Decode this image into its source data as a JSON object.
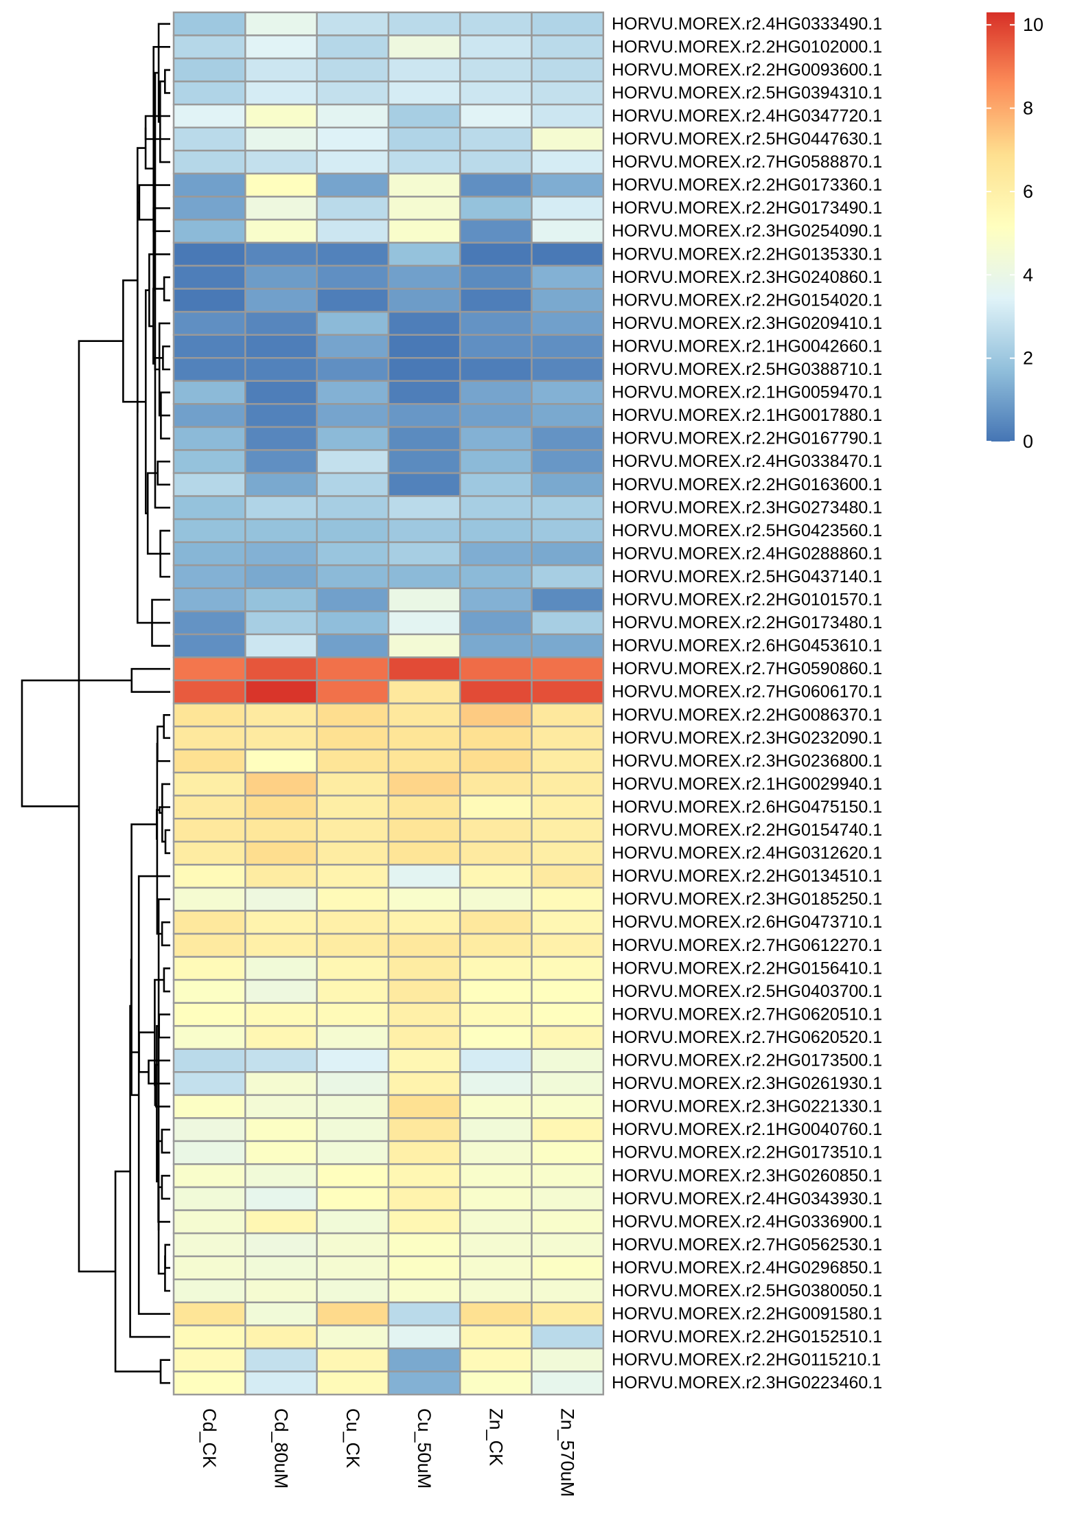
{
  "chart_data": {
    "type": "heatmap",
    "columns": [
      "Cd_CK",
      "Cd_80uM",
      "Cu_CK",
      "Cu_50uM",
      "Zn_CK",
      "Zn_570uM"
    ],
    "rows": [
      "HORVU.MOREX.r2.4HG0333490.1",
      "HORVU.MOREX.r2.2HG0102000.1",
      "HORVU.MOREX.r2.2HG0093600.1",
      "HORVU.MOREX.r2.5HG0394310.1",
      "HORVU.MOREX.r2.4HG0347720.1",
      "HORVU.MOREX.r2.5HG0447630.1",
      "HORVU.MOREX.r2.7HG0588870.1",
      "HORVU.MOREX.r2.2HG0173360.1",
      "HORVU.MOREX.r2.2HG0173490.1",
      "HORVU.MOREX.r2.3HG0254090.1",
      "HORVU.MOREX.r2.2HG0135330.1",
      "HORVU.MOREX.r2.3HG0240860.1",
      "HORVU.MOREX.r2.2HG0154020.1",
      "HORVU.MOREX.r2.3HG0209410.1",
      "HORVU.MOREX.r2.1HG0042660.1",
      "HORVU.MOREX.r2.5HG0388710.1",
      "HORVU.MOREX.r2.1HG0059470.1",
      "HORVU.MOREX.r2.1HG0017880.1",
      "HORVU.MOREX.r2.2HG0167790.1",
      "HORVU.MOREX.r2.4HG0338470.1",
      "HORVU.MOREX.r2.2HG0163600.1",
      "HORVU.MOREX.r2.3HG0273480.1",
      "HORVU.MOREX.r2.5HG0423560.1",
      "HORVU.MOREX.r2.4HG0288860.1",
      "HORVU.MOREX.r2.5HG0437140.1",
      "HORVU.MOREX.r2.2HG0101570.1",
      "HORVU.MOREX.r2.2HG0173480.1",
      "HORVU.MOREX.r2.6HG0453610.1",
      "HORVU.MOREX.r2.7HG0590860.1",
      "HORVU.MOREX.r2.7HG0606170.1",
      "HORVU.MOREX.r2.2HG0086370.1",
      "HORVU.MOREX.r2.3HG0232090.1",
      "HORVU.MOREX.r2.3HG0236800.1",
      "HORVU.MOREX.r2.1HG0029940.1",
      "HORVU.MOREX.r2.6HG0475150.1",
      "HORVU.MOREX.r2.2HG0154740.1",
      "HORVU.MOREX.r2.4HG0312620.1",
      "HORVU.MOREX.r2.2HG0134510.1",
      "HORVU.MOREX.r2.3HG0185250.1",
      "HORVU.MOREX.r2.6HG0473710.1",
      "HORVU.MOREX.r2.7HG0612270.1",
      "HORVU.MOREX.r2.2HG0156410.1",
      "HORVU.MOREX.r2.5HG0403700.1",
      "HORVU.MOREX.r2.7HG0620510.1",
      "HORVU.MOREX.r2.7HG0620520.1",
      "HORVU.MOREX.r2.2HG0173500.1",
      "HORVU.MOREX.r2.3HG0261930.1",
      "HORVU.MOREX.r2.3HG0221330.1",
      "HORVU.MOREX.r2.1HG0040760.1",
      "HORVU.MOREX.r2.2HG0173510.1",
      "HORVU.MOREX.r2.3HG0260850.1",
      "HORVU.MOREX.r2.4HG0343930.1",
      "HORVU.MOREX.r2.4HG0336900.1",
      "HORVU.MOREX.r2.7HG0562530.1",
      "HORVU.MOREX.r2.4HG0296850.1",
      "HORVU.MOREX.r2.5HG0380050.1",
      "HORVU.MOREX.r2.2HG0091580.1",
      "HORVU.MOREX.r2.2HG0152510.1",
      "HORVU.MOREX.r2.2HG0115210.1",
      "HORVU.MOREX.r2.3HG0223460.1"
    ],
    "values": [
      [
        2.0,
        3.8,
        2.8,
        2.6,
        2.6,
        2.4
      ],
      [
        2.5,
        3.5,
        2.5,
        4.2,
        3.0,
        2.6
      ],
      [
        2.2,
        3.0,
        2.6,
        3.0,
        2.8,
        2.6
      ],
      [
        2.4,
        3.2,
        2.8,
        3.2,
        3.0,
        2.8
      ],
      [
        3.5,
        4.8,
        3.6,
        2.2,
        3.5,
        3.0
      ],
      [
        2.6,
        3.8,
        3.4,
        2.4,
        2.6,
        4.6
      ],
      [
        2.5,
        2.8,
        3.2,
        2.7,
        2.6,
        3.2
      ],
      [
        1.0,
        5.2,
        1.1,
        4.6,
        0.6,
        1.3
      ],
      [
        1.1,
        4.2,
        2.6,
        4.6,
        1.8,
        3.2
      ],
      [
        1.6,
        4.8,
        3.0,
        4.8,
        0.6,
        3.6
      ],
      [
        0.1,
        0.4,
        0.3,
        1.8,
        0.1,
        0.1
      ],
      [
        0.2,
        0.9,
        0.6,
        1.0,
        0.5,
        1.4
      ],
      [
        0.1,
        1.0,
        0.2,
        0.9,
        0.2,
        1.2
      ],
      [
        0.6,
        0.4,
        1.6,
        0.2,
        0.7,
        1.0
      ],
      [
        0.3,
        0.2,
        1.1,
        0.1,
        0.6,
        0.6
      ],
      [
        0.3,
        0.3,
        0.6,
        0.1,
        0.2,
        0.4
      ],
      [
        1.6,
        0.2,
        1.4,
        0.2,
        1.1,
        1.4
      ],
      [
        1.0,
        0.3,
        1.1,
        0.8,
        1.0,
        1.2
      ],
      [
        1.6,
        0.4,
        1.6,
        0.5,
        1.4,
        0.7
      ],
      [
        1.8,
        0.6,
        2.8,
        0.5,
        1.6,
        0.8
      ],
      [
        2.5,
        1.2,
        2.4,
        0.3,
        2.0,
        1.2
      ],
      [
        1.8,
        2.4,
        2.2,
        2.6,
        2.2,
        2.2
      ],
      [
        1.8,
        1.8,
        1.8,
        2.0,
        1.9,
        2.0
      ],
      [
        1.5,
        1.4,
        1.9,
        2.2,
        1.3,
        1.2
      ],
      [
        1.4,
        1.2,
        1.6,
        1.6,
        1.6,
        2.2
      ],
      [
        1.4,
        1.8,
        1.0,
        4.0,
        1.4,
        0.5
      ],
      [
        0.7,
        2.2,
        1.7,
        3.6,
        1.0,
        2.2
      ],
      [
        0.6,
        3.0,
        1.0,
        4.5,
        1.2,
        1.2
      ],
      [
        9.0,
        9.6,
        9.1,
        9.8,
        9.2,
        9.1
      ],
      [
        9.5,
        10.2,
        9.1,
        6.4,
        9.8,
        9.7
      ],
      [
        6.6,
        6.3,
        6.9,
        6.4,
        7.3,
        6.4
      ],
      [
        6.4,
        6.3,
        6.8,
        6.6,
        6.8,
        6.3
      ],
      [
        6.8,
        5.2,
        6.6,
        6.6,
        6.9,
        6.2
      ],
      [
        6.1,
        7.2,
        6.2,
        7.1,
        6.4,
        6.2
      ],
      [
        6.3,
        6.9,
        6.1,
        6.5,
        5.4,
        6.0
      ],
      [
        6.4,
        6.5,
        6.2,
        6.6,
        6.3,
        6.1
      ],
      [
        6.2,
        6.9,
        6.2,
        6.6,
        6.3,
        6.1
      ],
      [
        5.4,
        6.2,
        5.8,
        3.6,
        5.6,
        6.3
      ],
      [
        4.6,
        4.2,
        5.4,
        4.8,
        4.6,
        5.4
      ],
      [
        6.4,
        5.8,
        6.0,
        5.8,
        6.4,
        5.6
      ],
      [
        6.3,
        6.0,
        6.2,
        6.4,
        6.2,
        5.9
      ],
      [
        5.4,
        4.4,
        5.6,
        6.2,
        5.5,
        5.4
      ],
      [
        5.0,
        4.2,
        5.6,
        6.3,
        5.2,
        5.2
      ],
      [
        5.2,
        5.4,
        5.4,
        6.0,
        5.4,
        5.2
      ],
      [
        4.8,
        5.6,
        4.6,
        6.0,
        5.1,
        5.6
      ],
      [
        2.6,
        2.8,
        3.4,
        5.6,
        3.2,
        4.4
      ],
      [
        2.8,
        4.6,
        4.0,
        5.8,
        3.8,
        4.4
      ],
      [
        5.0,
        4.5,
        4.4,
        6.8,
        4.8,
        4.8
      ],
      [
        4.2,
        5.0,
        4.4,
        6.4,
        4.4,
        5.6
      ],
      [
        4.0,
        5.0,
        4.4,
        6.0,
        4.6,
        5.0
      ],
      [
        4.8,
        4.4,
        5.2,
        5.6,
        4.8,
        4.8
      ],
      [
        4.4,
        3.8,
        5.2,
        5.8,
        4.8,
        4.6
      ],
      [
        4.6,
        5.6,
        4.4,
        5.6,
        4.6,
        4.8
      ],
      [
        4.5,
        4.2,
        4.6,
        5.0,
        4.6,
        4.6
      ],
      [
        4.6,
        4.4,
        4.6,
        5.0,
        4.7,
        5.0
      ],
      [
        4.4,
        4.6,
        4.4,
        4.8,
        4.6,
        4.6
      ],
      [
        6.6,
        4.4,
        7.0,
        2.6,
        6.8,
        6.2
      ],
      [
        5.4,
        5.8,
        4.6,
        3.6,
        5.6,
        2.6
      ],
      [
        5.4,
        2.8,
        5.6,
        1.2,
        5.4,
        4.4
      ],
      [
        5.2,
        3.2,
        5.4,
        1.4,
        5.0,
        3.8
      ]
    ],
    "color_scale": {
      "min": 0,
      "max": 10.3,
      "stops": [
        [
          0,
          "#4575b4"
        ],
        [
          0.1667,
          "#91bfdb"
        ],
        [
          0.3333,
          "#e0f3f8"
        ],
        [
          0.5,
          "#ffffbf"
        ],
        [
          0.6667,
          "#fee090"
        ],
        [
          0.8333,
          "#fc8d59"
        ],
        [
          1,
          "#d73027"
        ]
      ]
    },
    "legend": {
      "ticks": [
        0,
        2,
        4,
        6,
        8,
        10
      ],
      "position": "top-right"
    },
    "dendrogram": "rows",
    "cell_border_color": "#999999"
  }
}
